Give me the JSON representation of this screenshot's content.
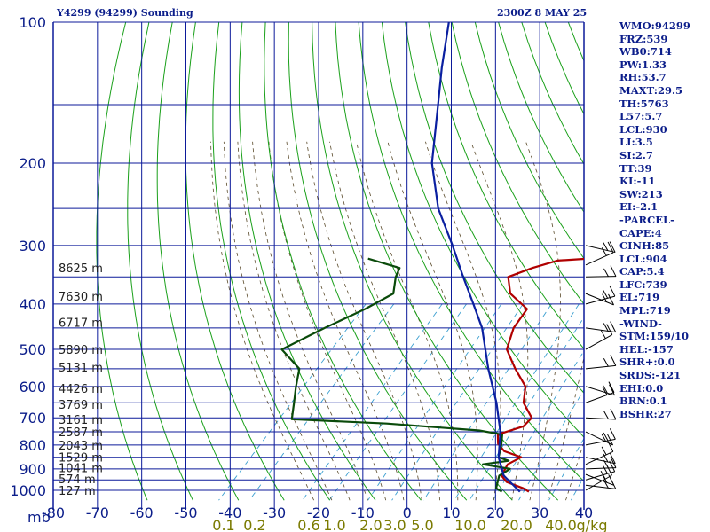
{
  "header": {
    "station": "Y4299 (94299) Sounding",
    "time": "2300Z  8 MAY 25"
  },
  "indices": [
    "WMO:94299",
    "FRZ:539",
    "WB0:714",
    "PW:1.33",
    "RH:53.7",
    "MAXT:29.5",
    "TH:5763",
    "L57:5.7",
    "LCL:930",
    "LI:3.5",
    "SI:2.7",
    "TT:39",
    "KI:-11",
    "SW:213",
    "EI:-2.1",
    "-PARCEL-",
    "CAPE:4",
    "CINH:85",
    "LCL:904",
    "CAP:5.4",
    "LFC:739",
    "EL:719",
    "MPL:719",
    "-WIND-",
    "STM:159/10",
    "HEL:-157",
    "SHR+:0.0",
    "SRDS:-121",
    "EHI:0.0",
    "BRN:0.1",
    "BSHR:27"
  ],
  "chart_data": {
    "type": "line",
    "chart_kind": "skew-T log-p sounding",
    "y_axis": {
      "unit_label": "mb",
      "scale": "log",
      "ticks": [
        100,
        200,
        300,
        400,
        500,
        600,
        700,
        800,
        900,
        1000
      ],
      "range": [
        100,
        1050
      ]
    },
    "x_axis": {
      "ticks": [
        -80,
        -70,
        -60,
        -50,
        -40,
        -30,
        -20,
        -10,
        0,
        10,
        20,
        30,
        40
      ],
      "range": [
        -80,
        40
      ]
    },
    "mixing_ratio_labels": [
      "0.1",
      "0.2",
      "0.6",
      "1.0",
      "2.0",
      "3.0",
      "5.0",
      "10.0",
      "20.0",
      "40.0",
      "g/kg"
    ],
    "height_labels": [
      {
        "p": 335,
        "label": "8625 m"
      },
      {
        "p": 385,
        "label": "7630 m"
      },
      {
        "p": 438,
        "label": "6717 m"
      },
      {
        "p": 500,
        "label": "5890 m"
      },
      {
        "p": 545,
        "label": "5131 m"
      },
      {
        "p": 605,
        "label": "4426 m"
      },
      {
        "p": 655,
        "label": "3769 m"
      },
      {
        "p": 705,
        "label": "3161 m"
      },
      {
        "p": 750,
        "label": "2587 m"
      },
      {
        "p": 800,
        "label": "2043 m"
      },
      {
        "p": 850,
        "label": "1529 m"
      },
      {
        "p": 895,
        "label": "1041 m"
      },
      {
        "p": 945,
        "label": "574 m"
      },
      {
        "p": 1000,
        "label": "127 m"
      }
    ],
    "series": [
      {
        "role": "temperature",
        "color": "#b00000",
        "points": [
          [
            1007,
            26
          ],
          [
            990,
            24
          ],
          [
            960,
            19
          ],
          [
            930,
            16.5
          ],
          [
            880,
            15.5
          ],
          [
            850,
            17
          ],
          [
            825,
            12
          ],
          [
            795,
            9
          ],
          [
            760,
            7
          ],
          [
            730,
            11
          ],
          [
            700,
            11
          ],
          [
            650,
            6
          ],
          [
            600,
            3
          ],
          [
            550,
            -3
          ],
          [
            500,
            -9
          ],
          [
            450,
            -12
          ],
          [
            410,
            -13
          ],
          [
            380,
            -20
          ],
          [
            350,
            -24
          ],
          [
            335,
            -20.5
          ],
          [
            323,
            -16.5
          ],
          [
            320,
            -10
          ]
        ]
      },
      {
        "role": "dewpoint",
        "color": "#0a4a0a",
        "points": [
          [
            1007,
            20
          ],
          [
            990,
            18
          ],
          [
            960,
            17
          ],
          [
            930,
            16
          ],
          [
            900,
            17
          ],
          [
            880,
            10
          ],
          [
            865,
            15
          ],
          [
            850,
            12
          ],
          [
            800,
            10
          ],
          [
            760,
            8
          ],
          [
            745,
            2
          ],
          [
            720,
            -20
          ],
          [
            705,
            -42
          ],
          [
            650,
            -45
          ],
          [
            600,
            -48
          ],
          [
            550,
            -51
          ],
          [
            500,
            -59
          ],
          [
            450,
            -54
          ],
          [
            410,
            -49
          ],
          [
            380,
            -46
          ],
          [
            350,
            -49
          ],
          [
            335,
            -50
          ],
          [
            320,
            -59
          ]
        ]
      },
      {
        "role": "parcel",
        "color": "#0a1fa0",
        "points": [
          [
            1007,
            24
          ],
          [
            930,
            17
          ],
          [
            850,
            12
          ],
          [
            750,
            7
          ],
          [
            650,
            0
          ],
          [
            550,
            -9
          ],
          [
            450,
            -19
          ],
          [
            400,
            -26
          ],
          [
            350,
            -34
          ],
          [
            300,
            -43
          ],
          [
            250,
            -54
          ],
          [
            200,
            -65
          ],
          [
            150,
            -76
          ],
          [
            125,
            -83
          ],
          [
            100,
            -91
          ]
        ]
      }
    ],
    "wind_barbs": [
      {
        "p": 1000
      },
      {
        "p": 975
      },
      {
        "p": 950
      },
      {
        "p": 925
      },
      {
        "p": 900
      },
      {
        "p": 880
      },
      {
        "p": 850
      },
      {
        "p": 800
      },
      {
        "p": 750
      },
      {
        "p": 700
      },
      {
        "p": 650
      },
      {
        "p": 600
      },
      {
        "p": 550
      },
      {
        "p": 500
      },
      {
        "p": 450
      },
      {
        "p": 400
      },
      {
        "p": 380
      },
      {
        "p": 350
      },
      {
        "p": 330
      },
      {
        "p": 300
      }
    ]
  },
  "colors": {
    "grid": "#0c1a9a",
    "dry_adiabat": "#1aa01a",
    "moist_adiabat": "#5a4a2a",
    "mixing_ratio": "#3a9fd0",
    "temperature": "#b00000",
    "dewpoint": "#0a4a0a",
    "parcel": "#0a1fa0",
    "text": "#0b1d8a",
    "mix_label": "#7a7a00"
  }
}
